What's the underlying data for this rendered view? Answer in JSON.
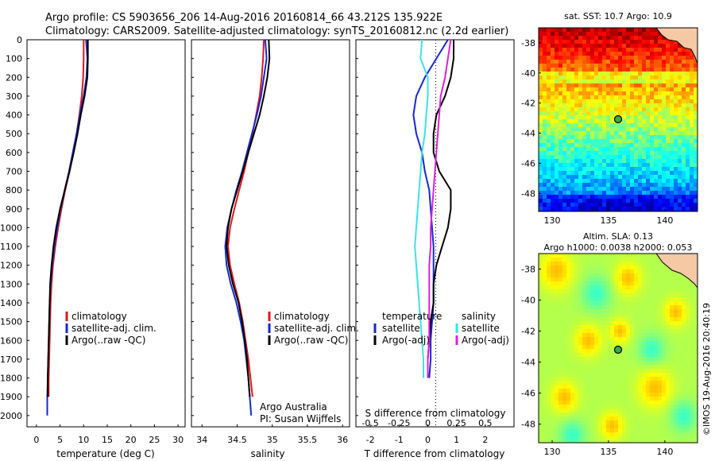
{
  "title": {
    "line1": "Argo profile: CS 5903656_206 14-Aug-2016 20160814_66 43.212S 135.922E",
    "line2": "Climatology: CARS2009. Satellite-adjusted climatology: synTS_20160812.nc (2.2d earlier)"
  },
  "colors": {
    "climatology": "#e0161b",
    "satellite": "#1428d2",
    "argo": "#000000",
    "sat_salinity": "#3ee0e8",
    "argo_salinity": "#dd20dd"
  },
  "chart_data": [
    {
      "type": "line",
      "id": "temperature",
      "xlabel": "temperature (deg C)",
      "ylabel": "",
      "xlim": [
        -2,
        31.5
      ],
      "ylim": [
        2060,
        0
      ],
      "xticks": [
        0,
        5,
        10,
        15,
        20,
        25,
        30
      ],
      "yticks": [
        0,
        100,
        200,
        300,
        400,
        500,
        600,
        700,
        800,
        900,
        1000,
        1100,
        1200,
        1300,
        1400,
        1500,
        1600,
        1700,
        1800,
        1900,
        2000
      ],
      "legend": [
        "climatology",
        "satellite-adj. clim.",
        "Argo(..raw -QC)"
      ],
      "series": [
        {
          "name": "climatology",
          "color": "#e0161b",
          "x": [
            10.0,
            10.0,
            9.9,
            9.6,
            9.1,
            8.5,
            7.8,
            7.0,
            6.1,
            5.3,
            4.6,
            4.0,
            3.5,
            3.2,
            3.0,
            2.9,
            2.8,
            2.7,
            2.6,
            2.6
          ],
          "y": [
            0,
            100,
            200,
            300,
            400,
            500,
            600,
            700,
            800,
            900,
            1000,
            1100,
            1200,
            1300,
            1400,
            1500,
            1600,
            1700,
            1800,
            1900
          ]
        },
        {
          "name": "satellite-adj. clim.",
          "color": "#1428d2",
          "x": [
            10.5,
            10.8,
            10.6,
            10.0,
            9.2,
            8.5,
            7.7,
            6.9,
            6.0,
            5.1,
            4.4,
            3.8,
            3.3,
            3.0,
            2.8,
            2.7,
            2.6,
            2.5,
            2.4,
            2.3,
            2.3
          ],
          "y": [
            0,
            100,
            200,
            300,
            400,
            500,
            600,
            700,
            800,
            900,
            1000,
            1100,
            1200,
            1300,
            1400,
            1500,
            1600,
            1700,
            1800,
            1900,
            2000
          ]
        },
        {
          "name": "Argo(..raw -QC)",
          "color": "#000000",
          "x": [
            10.9,
            10.9,
            10.8,
            10.2,
            9.4,
            8.7,
            7.9,
            7.0,
            6.0,
            5.0,
            4.2,
            3.6,
            3.2,
            2.9,
            2.8,
            2.7,
            2.6,
            2.5,
            2.4,
            2.4
          ],
          "y": [
            0,
            100,
            200,
            300,
            400,
            500,
            600,
            700,
            800,
            900,
            1000,
            1100,
            1200,
            1300,
            1400,
            1500,
            1600,
            1700,
            1800,
            1900
          ]
        }
      ]
    },
    {
      "type": "line",
      "id": "salinity",
      "xlabel": "salinity",
      "ylabel": "",
      "xlim": [
        33.85,
        36.1
      ],
      "ylim": [
        2060,
        0
      ],
      "xticks": [
        34,
        34.5,
        35,
        35.5,
        36
      ],
      "legend": [
        "climatology",
        "satellite-adj. clim.",
        "Argo(..raw -QC)"
      ],
      "annotation": [
        "Argo Australia",
        "PI: Susan Wijffels"
      ],
      "series": [
        {
          "name": "climatology",
          "color": "#e0161b",
          "x": [
            34.88,
            34.87,
            34.85,
            34.82,
            34.77,
            34.72,
            34.66,
            34.6,
            34.53,
            34.46,
            34.4,
            34.37,
            34.4,
            34.46,
            34.53,
            34.58,
            34.62,
            34.66,
            34.69,
            34.72
          ],
          "y": [
            0,
            100,
            200,
            300,
            400,
            500,
            600,
            700,
            800,
            900,
            1000,
            1100,
            1200,
            1300,
            1400,
            1500,
            1600,
            1700,
            1800,
            1900
          ]
        },
        {
          "name": "satellite-adj. clim.",
          "color": "#1428d2",
          "x": [
            34.9,
            34.92,
            34.88,
            34.84,
            34.78,
            34.71,
            34.64,
            34.57,
            34.49,
            34.42,
            34.36,
            34.33,
            34.35,
            34.41,
            34.49,
            34.55,
            34.6,
            34.63,
            34.66,
            34.68,
            34.7
          ],
          "y": [
            0,
            100,
            200,
            300,
            400,
            500,
            600,
            700,
            800,
            900,
            1000,
            1100,
            1200,
            1300,
            1400,
            1500,
            1600,
            1700,
            1800,
            1900,
            2000
          ]
        },
        {
          "name": "Argo(..raw -QC)",
          "color": "#000000",
          "x": [
            34.95,
            34.96,
            34.93,
            34.88,
            34.82,
            34.74,
            34.66,
            34.58,
            34.5,
            34.42,
            34.37,
            34.35,
            34.38,
            34.44,
            34.52,
            34.57,
            34.61,
            34.64,
            34.66,
            34.68
          ],
          "y": [
            0,
            100,
            200,
            300,
            400,
            500,
            600,
            700,
            800,
            900,
            1000,
            1100,
            1200,
            1300,
            1400,
            1500,
            1600,
            1700,
            1800,
            1900
          ]
        }
      ]
    },
    {
      "type": "line",
      "id": "difference",
      "xlabel": "T difference from climatology",
      "xlabel_top": "S difference from climatology",
      "xlim": [
        -2.5,
        3.0
      ],
      "xticks": [
        -2,
        -1,
        0,
        1,
        2
      ],
      "xticks_top": [
        -0.5,
        -0.25,
        0,
        0.25,
        0.5
      ],
      "ylim": [
        2060,
        0
      ],
      "legend_headers": [
        "temperature",
        "salinity"
      ],
      "legend": [
        "satellite",
        "Argo(-adj)",
        "satellite",
        "Argo(-adj)"
      ],
      "series": [
        {
          "name": "satellite",
          "quantity": "temperature",
          "color": "#1428d2",
          "x": [
            0.7,
            0.3,
            -0.1,
            -0.4,
            -0.5,
            -0.4,
            -0.2,
            -0.1,
            0.05,
            0.1,
            0.15,
            0.2,
            0.2,
            0.2,
            0.2,
            0.15,
            0.1,
            0.1,
            0.05
          ],
          "y": [
            0,
            100,
            200,
            300,
            400,
            500,
            600,
            700,
            800,
            900,
            1000,
            1100,
            1200,
            1300,
            1400,
            1500,
            1600,
            1700,
            1800
          ]
        },
        {
          "name": "Argo(-adj)",
          "quantity": "temperature",
          "color": "#000000",
          "x": [
            0.9,
            0.9,
            0.8,
            0.6,
            0.3,
            0.2,
            0.2,
            0.4,
            0.8,
            0.8,
            0.7,
            0.5,
            0.3,
            0.2,
            0.2,
            0.1,
            0.05,
            0.0,
            0.0
          ],
          "y": [
            0,
            100,
            200,
            300,
            400,
            500,
            600,
            700,
            800,
            900,
            1000,
            1100,
            1200,
            1300,
            1400,
            1500,
            1600,
            1700,
            1800
          ]
        },
        {
          "name": "satellite",
          "quantity": "salinity",
          "color": "#3ee0e8",
          "x": [
            -0.2,
            -0.25,
            0.0,
            0.0,
            -0.05,
            -0.1,
            -0.2,
            -0.25,
            -0.3,
            -0.35,
            -0.4,
            -0.45,
            -0.4,
            -0.35,
            -0.3,
            -0.25,
            -0.2,
            -0.15,
            -0.15
          ],
          "y": [
            0,
            100,
            200,
            300,
            400,
            500,
            600,
            700,
            800,
            900,
            1000,
            1100,
            1200,
            1300,
            1400,
            1500,
            1600,
            1700,
            1800
          ]
        },
        {
          "name": "Argo(-adj)",
          "quantity": "salinity",
          "color": "#dd20dd",
          "x": [
            0.8,
            0.7,
            0.6,
            0.45,
            0.4,
            0.35,
            0.3,
            0.25,
            0.2,
            0.15,
            0.1,
            0.1,
            0.05,
            0.05,
            0.05,
            0.05,
            0.05,
            0.0,
            0.0
          ],
          "y": [
            0,
            100,
            200,
            300,
            400,
            500,
            600,
            700,
            800,
            900,
            1000,
            1100,
            1200,
            1300,
            1400,
            1500,
            1600,
            1700,
            1800
          ]
        }
      ]
    },
    {
      "type": "heatmap",
      "id": "sst_map",
      "title": "sat. SST: 10.7  Argo: 10.9",
      "xticks": [
        130,
        135,
        140
      ],
      "yticks": [
        -38,
        -40,
        -42,
        -44,
        -46,
        -48
      ],
      "xlim": [
        128.8,
        142.9
      ],
      "ylim": [
        -49.2,
        -37.0
      ],
      "marker": {
        "lon": 135.922,
        "lat": -43.212
      },
      "colormap": "jet"
    },
    {
      "type": "heatmap",
      "id": "sla_map",
      "title": "Altim. SLA: 0.13",
      "subtitle": "Argo h1000: 0.0038 h2000: 0.053",
      "xticks": [
        130,
        135,
        140
      ],
      "yticks": [
        -38,
        -40,
        -42,
        -44,
        -46,
        -48
      ],
      "xlim": [
        128.8,
        142.9
      ],
      "ylim": [
        -49.2,
        -37.0
      ],
      "marker": {
        "lon": 135.922,
        "lat": -43.212
      },
      "colormap": "jet"
    }
  ],
  "credit": "©IMOS 19-Aug-2016 20:40:19"
}
